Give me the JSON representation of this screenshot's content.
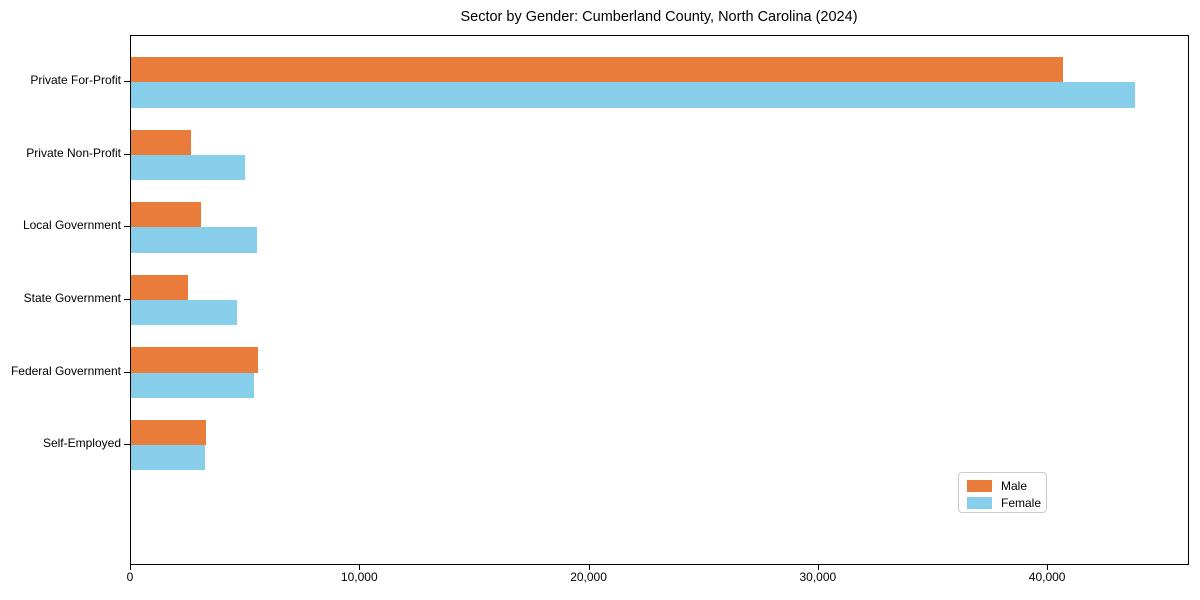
{
  "title": "Sector by Gender: Cumberland County, North Carolina (2024)",
  "chart_data": {
    "type": "bar",
    "orientation": "horizontal",
    "title": "Sector by Gender: Cumberland County, North Carolina (2024)",
    "categories": [
      "Private For-Profit",
      "Private Non-Profit",
      "Local Government",
      "State Government",
      "Federal Government",
      "Self-Employed"
    ],
    "series": [
      {
        "name": "Male",
        "color": "#e97c3b",
        "values": [
          40650,
          2600,
          3050,
          2500,
          5520,
          3280
        ]
      },
      {
        "name": "Female",
        "color": "#87ceeb",
        "values": [
          43800,
          4980,
          5480,
          4620,
          5370,
          3220
        ]
      }
    ],
    "xlabel": "",
    "ylabel": "",
    "xlim": [
      0,
      46100
    ],
    "x_ticks": [
      {
        "value": 0,
        "label": "0"
      },
      {
        "value": 10000,
        "label": "10,000"
      },
      {
        "value": 20000,
        "label": "20,000"
      },
      {
        "value": 30000,
        "label": "30,000"
      },
      {
        "value": 40000,
        "label": "40,000"
      }
    ],
    "grid": false,
    "bar_group_width": 0.7,
    "legend_position": "lower right"
  },
  "legend": {
    "items": [
      {
        "label": "Male",
        "color": "#e97c3b"
      },
      {
        "label": "Female",
        "color": "#87ceeb"
      }
    ]
  },
  "colors": {
    "male": "#e97c3b",
    "female": "#87ceeb",
    "spine": "#000000",
    "background": "#ffffff"
  }
}
